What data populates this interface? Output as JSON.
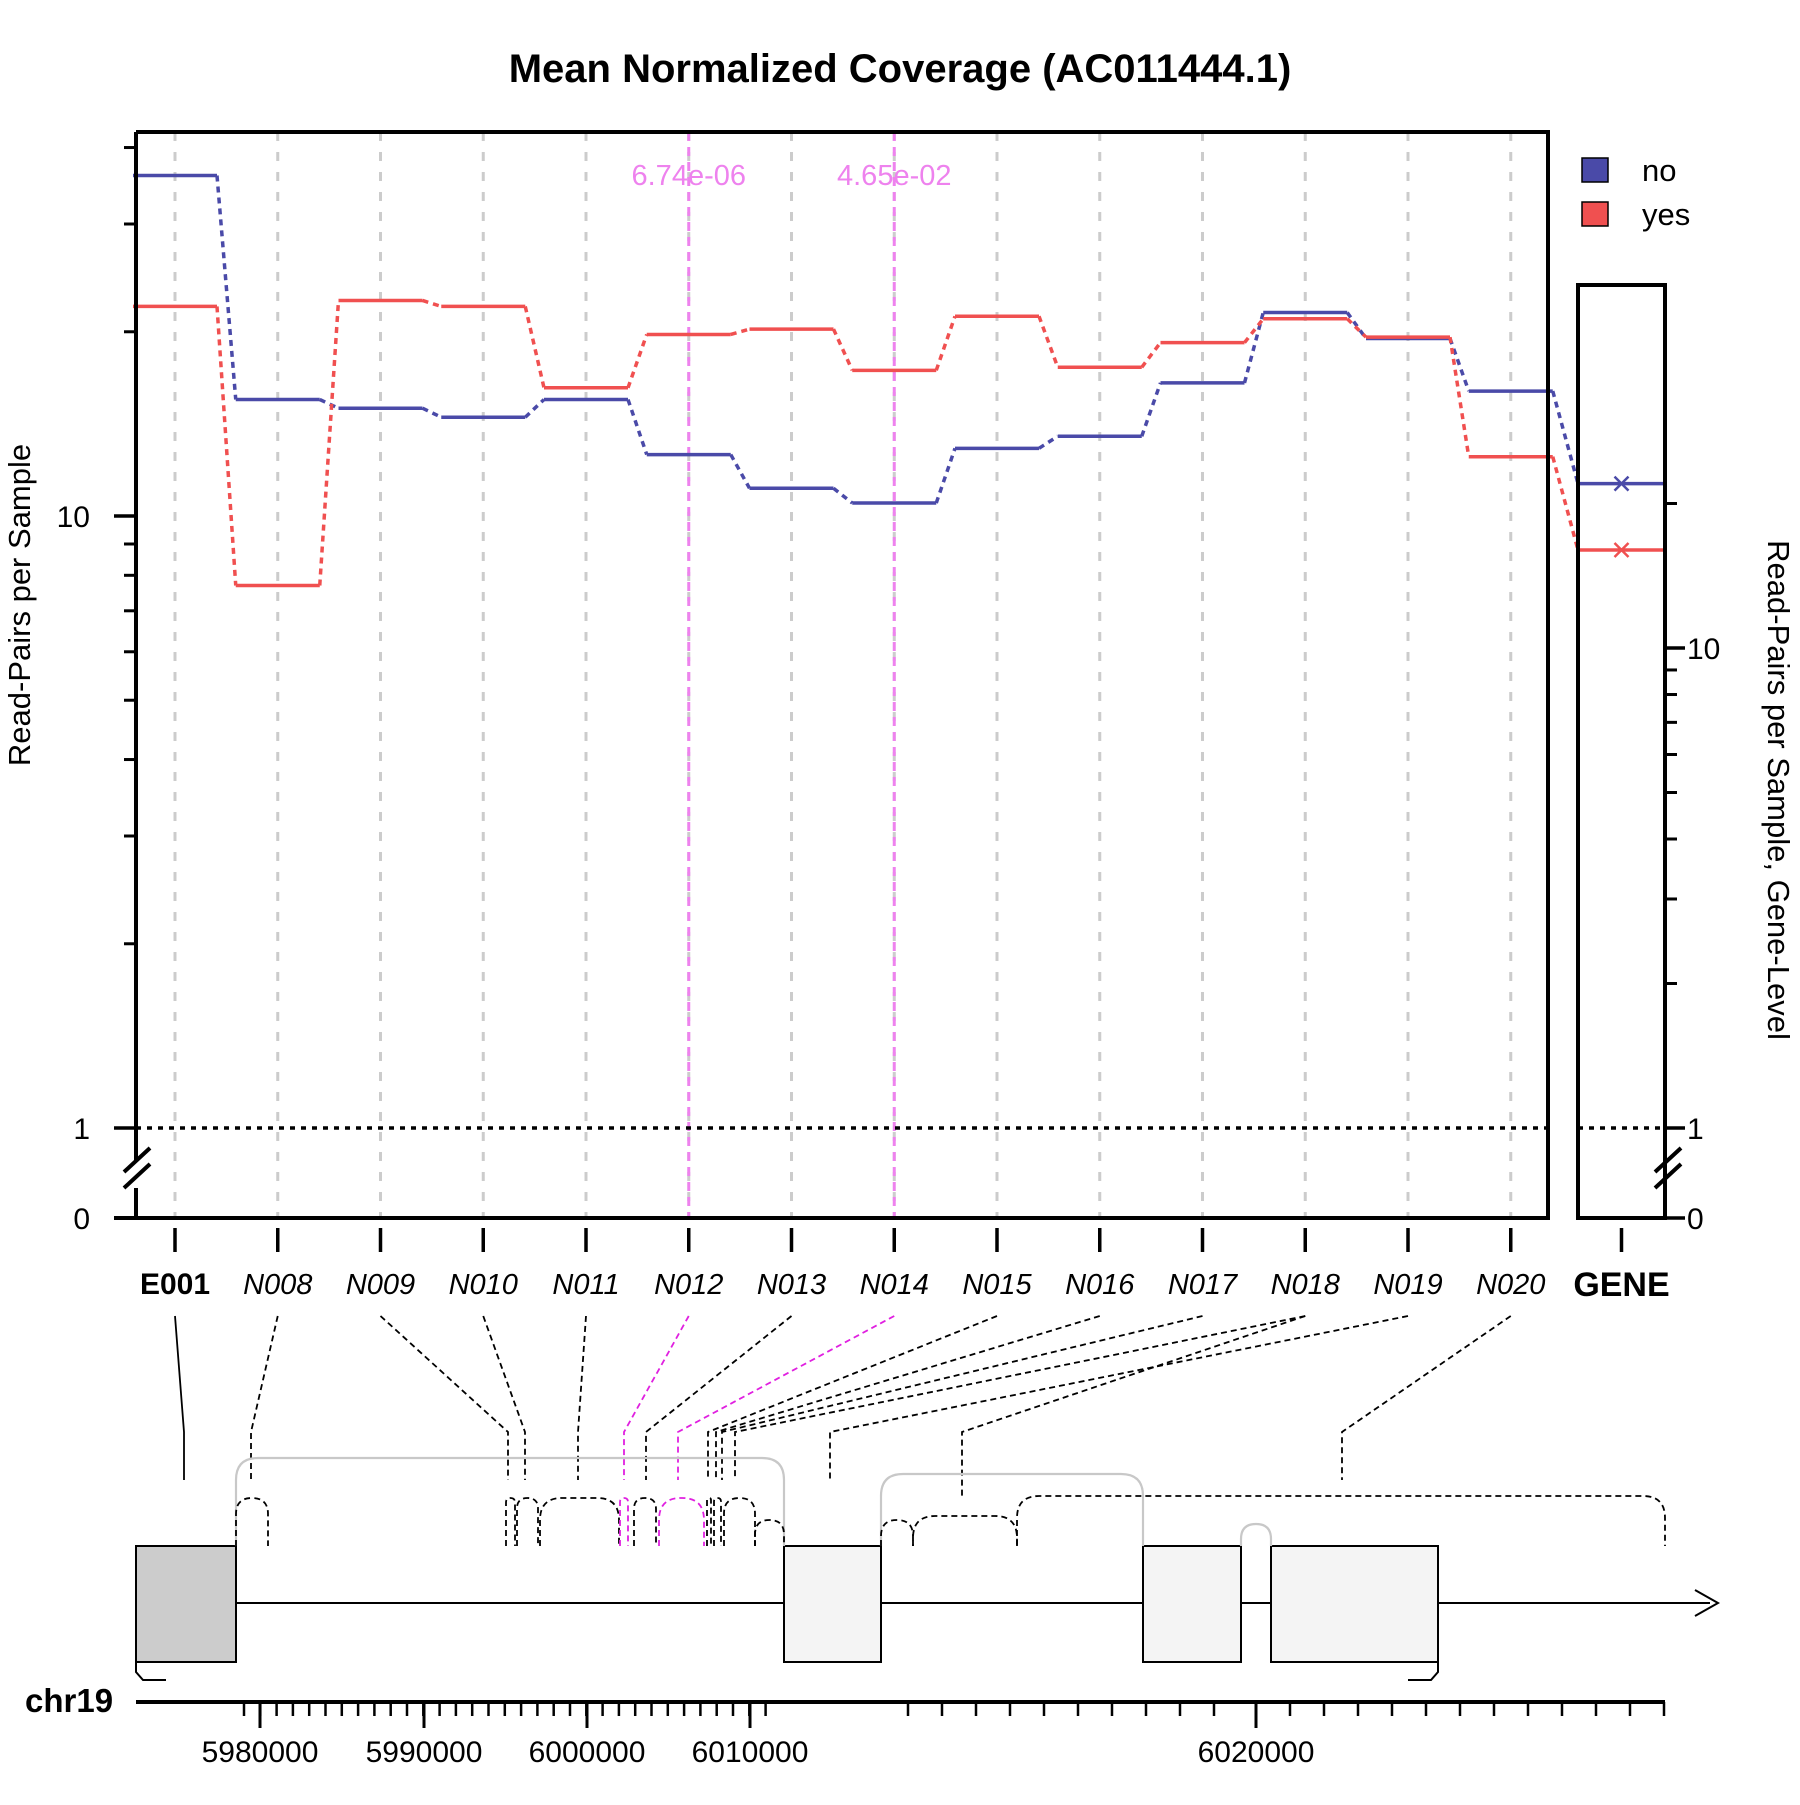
{
  "title": "Mean Normalized Coverage (AC011444.1)",
  "chart_data": {
    "type": "line",
    "title": "Mean Normalized Coverage (AC011444.1)",
    "ylabel": "Read-Pairs per Sample",
    "ylabel_right": "Read-Pairs per Sample, Gene-Level",
    "y_scale": "log with broken axis below 1",
    "y_ticks": [
      "0",
      "1",
      "10"
    ],
    "y_ticks_right": [
      "0",
      "1",
      "10"
    ],
    "categories": [
      "E001",
      "N008",
      "N009",
      "N010",
      "N011",
      "N012",
      "N013",
      "N014",
      "N015",
      "N016",
      "N017",
      "N018",
      "N019",
      "N020"
    ],
    "exon_categories": [
      "E001"
    ],
    "gene_category": "GENE",
    "series": [
      {
        "name": "no",
        "color": "#4a4aa8",
        "values": [
          36,
          15.5,
          15,
          14.5,
          15.5,
          12.6,
          11.1,
          10.5,
          12.9,
          13.5,
          16.5,
          21.5,
          19.5,
          16
        ],
        "gene_value": 22
      },
      {
        "name": "yes",
        "color": "#f05050",
        "values": [
          22,
          7.7,
          22.5,
          22,
          16.2,
          19.8,
          20.2,
          17.3,
          21.2,
          17.5,
          19.2,
          21,
          19.6,
          12.5
        ],
        "gene_value": 16
      }
    ],
    "reference_line": 1,
    "significant": [
      {
        "feature": "N012",
        "label": "6.74e-06"
      },
      {
        "feature": "N014",
        "label": "4.65e-02"
      }
    ],
    "legend": {
      "position": "top-right",
      "entries": [
        "no",
        "yes"
      ]
    },
    "grid": "vertical dashed per feature",
    "gene_model": {
      "chromosome": "chr19",
      "x_ticks": [
        "5980000",
        "5990000",
        "6000000",
        "6010000",
        "6020000"
      ],
      "strand": "+"
    }
  },
  "colors": {
    "no": "#4a4aa8",
    "yes": "#f05050",
    "significant": "#ee82ee",
    "significant_line": "#e020e0",
    "grid": "#cccccc",
    "exon_fill": "#cccccc",
    "exon_fill_light": "#f4f4f4",
    "junction": "#c8c8c8"
  }
}
